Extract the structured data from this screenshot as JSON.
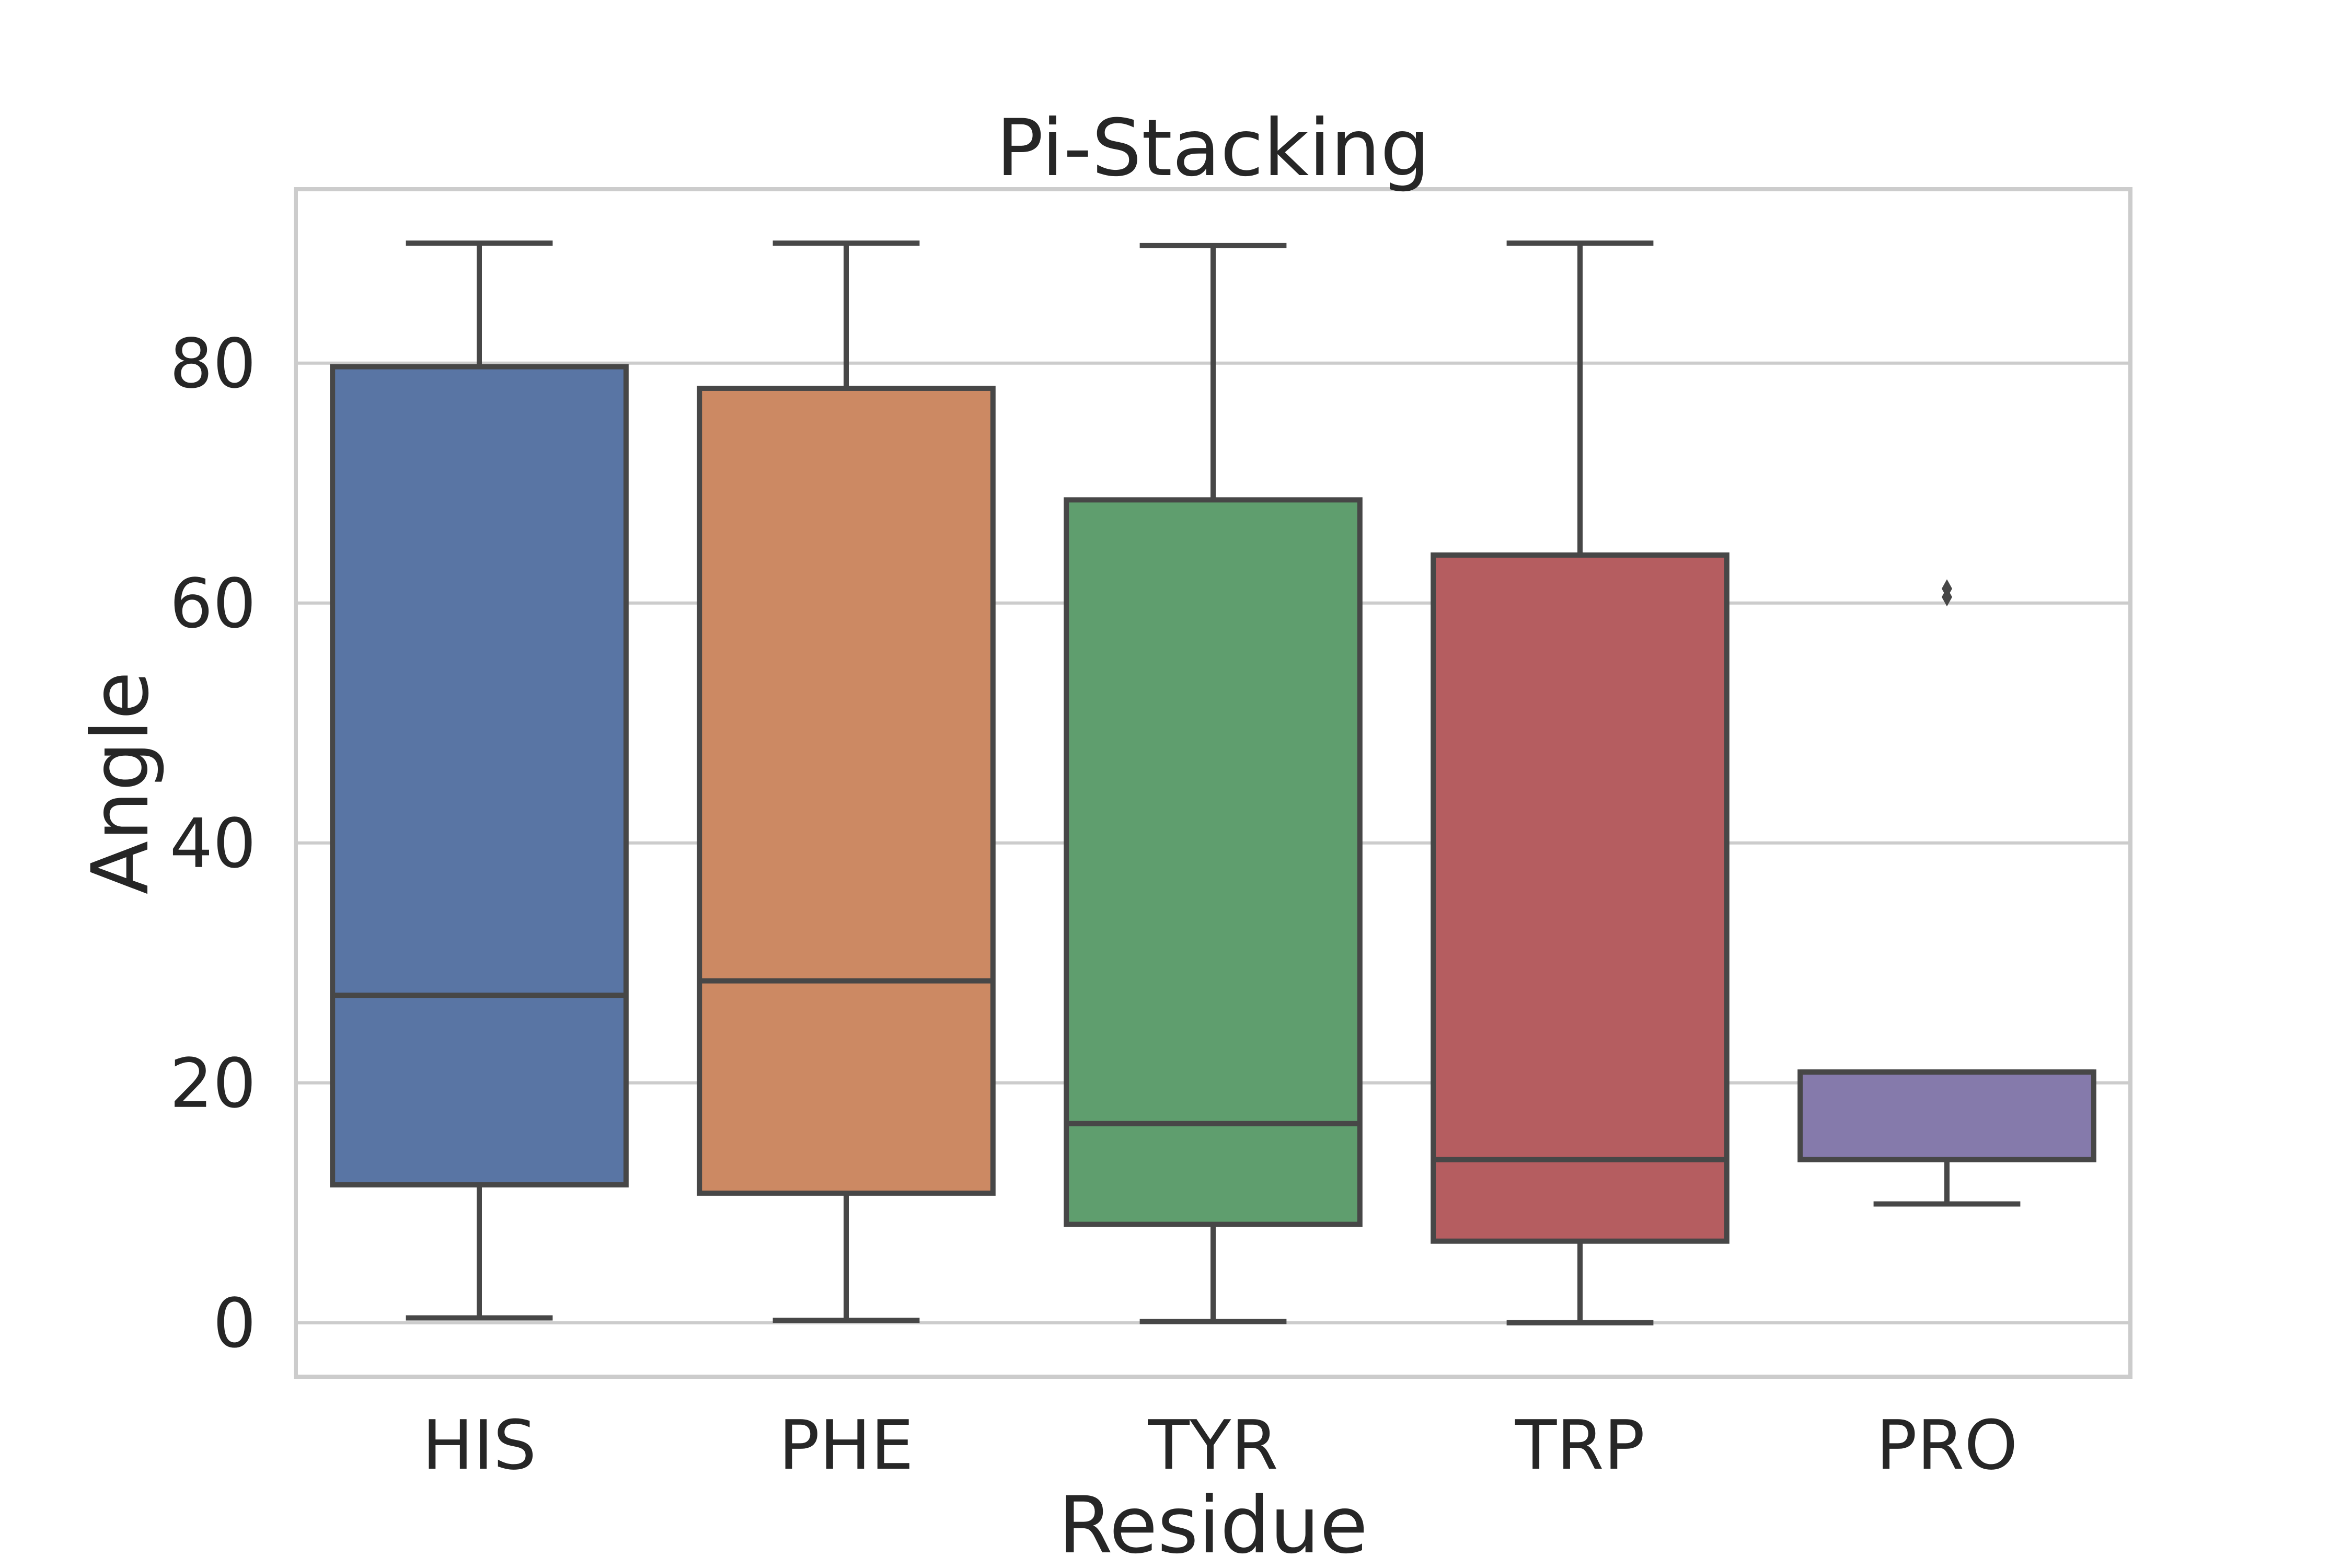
{
  "chart_data": {
    "type": "box",
    "title": "Pi-Stacking",
    "xlabel": "Residue",
    "ylabel": "Angle",
    "ylim": [
      -4.5,
      94.5
    ],
    "yticks": [
      "0",
      "20",
      "40",
      "60",
      "80"
    ],
    "ytick_values": [
      0,
      20,
      40,
      60,
      80
    ],
    "grid": true,
    "categories": [
      "HIS",
      "PHE",
      "TYR",
      "TRP",
      "PRO"
    ],
    "boxes": [
      {
        "category": "HIS",
        "whisker_low": 0.4,
        "q1": 11.5,
        "median": 27.3,
        "q3": 79.7,
        "whisker_high": 90.0,
        "color": "#5975a4"
      },
      {
        "category": "PHE",
        "whisker_low": 0.2,
        "q1": 10.8,
        "median": 28.5,
        "q3": 77.9,
        "whisker_high": 90.0,
        "color": "#cc8963"
      },
      {
        "category": "TYR",
        "whisker_low": 0.1,
        "q1": 8.2,
        "median": 16.6,
        "q3": 68.6,
        "whisker_high": 89.8,
        "color": "#5f9e6e"
      },
      {
        "category": "TRP",
        "whisker_low": 0.0,
        "q1": 6.8,
        "median": 13.6,
        "q3": 64.0,
        "whisker_high": 90.0,
        "color": "#b55d60"
      },
      {
        "category": "PRO",
        "whisker_low": 9.9,
        "q1": 13.6,
        "median": 20.9,
        "q3": 20.9,
        "whisker_high": 20.9,
        "color": "#857aab",
        "outliers": [
          60.5,
          61.2
        ]
      }
    ]
  }
}
